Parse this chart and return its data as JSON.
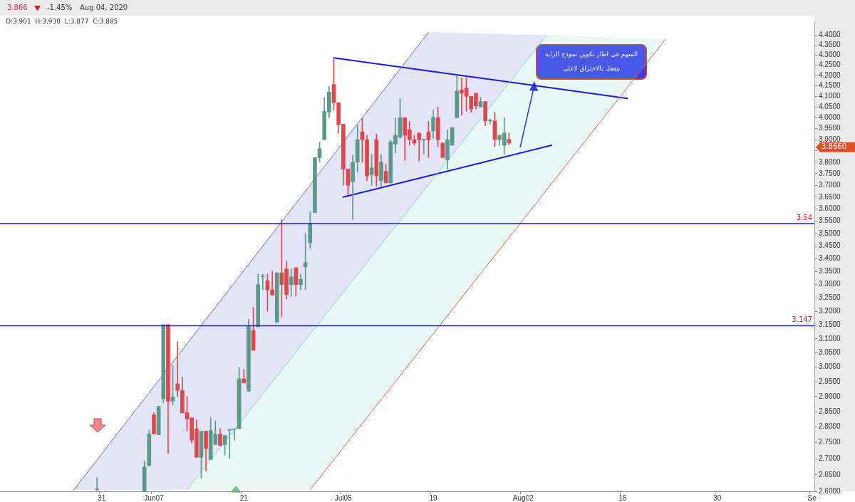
{
  "chart_data": {
    "type": "candlestick",
    "categories": [
      null,
      null,
      null,
      null,
      null,
      null,
      null,
      null,
      null,
      null,
      null,
      null,
      null,
      null,
      null,
      null,
      null,
      null,
      null,
      null,
      null,
      "31",
      null,
      null,
      null,
      null,
      null,
      null,
      null,
      null,
      null,
      null,
      "Jun07",
      null,
      null,
      null,
      null,
      null,
      null,
      null,
      null,
      null,
      null,
      null,
      null,
      null,
      null,
      null,
      null,
      null,
      null,
      "21",
      null,
      null,
      null,
      null,
      null,
      null,
      null,
      null,
      null,
      null,
      null,
      null,
      null,
      null,
      null,
      null,
      null,
      null,
      null,
      null,
      "Jul05",
      null,
      null,
      null,
      null,
      null,
      null,
      null,
      null,
      null,
      null,
      null,
      null,
      null,
      null,
      null,
      null,
      null,
      null,
      "19",
      null,
      null,
      null,
      null,
      null,
      null,
      null,
      null,
      null,
      null,
      null,
      null,
      null,
      null,
      null,
      null,
      null,
      null,
      "Aug02",
      null,
      null,
      null,
      null,
      null,
      null,
      null,
      null,
      null,
      null,
      null,
      null,
      null,
      null,
      null,
      null,
      null,
      null,
      null,
      null,
      "16",
      null,
      null,
      null,
      null,
      null,
      null,
      null,
      null,
      null,
      null,
      null,
      null,
      null,
      null,
      null,
      null,
      null,
      null,
      null,
      "30",
      null,
      null,
      null,
      null,
      null,
      null,
      null,
      null,
      null,
      null,
      null,
      null,
      null,
      null,
      null,
      null,
      null,
      null,
      null,
      "Se"
    ],
    "ohlc": [
      null,
      null,
      null,
      null,
      null,
      null,
      null,
      null,
      null,
      null,
      null,
      null,
      null,
      null,
      null,
      null,
      null,
      null,
      null,
      null,
      [
        2.605,
        2.642,
        2.6,
        2.605
      ],
      null,
      null,
      null,
      null,
      null,
      null,
      null,
      null,
      null,
      [
        2.6,
        2.693,
        2.6,
        2.674
      ],
      [
        2.678,
        2.79,
        2.678,
        2.778
      ],
      [
        2.84,
        2.847,
        2.778,
        2.778
      ],
      [
        2.775,
        2.868,
        2.775,
        2.868
      ],
      [
        2.893,
        3.151,
        2.88,
        3.151
      ],
      [
        3.151,
        3.151,
        2.716,
        2.885
      ],
      [
        2.885,
        3.006,
        2.871,
        2.898
      ],
      [
        2.943,
        3.09,
        2.9,
        2.921
      ],
      [
        2.921,
        2.966,
        2.846,
        2.846
      ],
      [
        2.847,
        2.9,
        2.788,
        2.826
      ],
      [
        2.83,
        2.83,
        2.748,
        2.758
      ],
      [
        2.794,
        2.823,
        2.704,
        2.704
      ],
      [
        2.704,
        2.787,
        2.64,
        2.787
      ],
      [
        2.787,
        2.787,
        2.662,
        2.731
      ],
      [
        2.697,
        2.83,
        2.697,
        2.789
      ],
      [
        2.744,
        2.82,
        2.744,
        2.777
      ],
      [
        2.777,
        2.794,
        2.741,
        2.741
      ],
      [
        2.744,
        2.774,
        2.711,
        2.773
      ],
      [
        2.79,
        2.79,
        2.7,
        2.79
      ],
      [
        2.792,
        2.792,
        2.758,
        2.792
      ],
      [
        2.795,
        3.0,
        2.795,
        2.96
      ],
      [
        2.96,
        2.993,
        2.946,
        2.946
      ],
      [
        2.918,
        3.17,
        2.918,
        3.147
      ],
      [
        3.13,
        3.215,
        3.059,
        3.059
      ],
      [
        3.143,
        3.34,
        3.143,
        3.3
      ],
      [
        3.33,
        3.34,
        3.28,
        3.33
      ],
      [
        3.315,
        3.34,
        3.2,
        3.28
      ],
      [
        3.28,
        3.352,
        3.26,
        3.26
      ],
      [
        3.16,
        3.345,
        3.16,
        3.345
      ],
      [
        3.345,
        3.556,
        3.18,
        3.3
      ],
      [
        3.36,
        3.39,
        3.245,
        3.262
      ],
      [
        3.3,
        3.36,
        3.255,
        3.33
      ],
      [
        3.365,
        3.365,
        3.255,
        3.3
      ],
      [
        3.3,
        3.34,
        3.28,
        3.32
      ],
      [
        3.368,
        3.5,
        3.28,
        3.385
      ],
      [
        3.463,
        3.59,
        3.44,
        3.54
      ],
      [
        3.585,
        3.82,
        3.585,
        3.82
      ],
      [
        3.82,
        3.89,
        3.8,
        3.86
      ],
      [
        3.9,
        4.095,
        3.9,
        4.03
      ],
      [
        4.025,
        4.148,
        4.0,
        4.12
      ],
      [
        4.156,
        4.286,
        4.035,
        4.07
      ],
      [
        4.07,
        4.07,
        3.93,
        3.968
      ],
      [
        3.97,
        3.97,
        3.7,
        3.77
      ],
      [
        3.77,
        3.77,
        3.66,
        3.7
      ],
      [
        3.716,
        3.83,
        3.557,
        3.8
      ],
      [
        3.8,
        3.966,
        3.757,
        3.9
      ],
      [
        3.935,
        3.997,
        3.8,
        3.9
      ],
      [
        3.9,
        3.92,
        3.72,
        3.74
      ],
      [
        3.746,
        3.835,
        3.7,
        3.775
      ],
      [
        3.9,
        3.925,
        3.695,
        3.74
      ],
      [
        3.72,
        3.835,
        3.695,
        3.8
      ],
      [
        3.76,
        3.79,
        3.71,
        3.71
      ],
      [
        3.71,
        3.9,
        3.71,
        3.89
      ],
      [
        3.88,
        4.0,
        3.84,
        3.92
      ],
      [
        3.91,
        4.09,
        3.91,
        4.0
      ],
      [
        4.0,
        4.0,
        3.806,
        3.92
      ],
      [
        3.945,
        3.983,
        3.875,
        3.9
      ],
      [
        3.9,
        3.92,
        3.875,
        3.885
      ],
      [
        3.93,
        3.93,
        3.806,
        3.9
      ],
      [
        3.9,
        3.9,
        3.835,
        3.9
      ],
      [
        3.935,
        3.983,
        3.82,
        3.9
      ],
      [
        3.94,
        4.035,
        3.905,
        4.0
      ],
      [
        4.0,
        4.05,
        3.87,
        3.9
      ],
      [
        3.885,
        3.885,
        3.82,
        3.82
      ],
      [
        3.81,
        3.945,
        3.77,
        3.9
      ],
      [
        3.875,
        3.955,
        3.875,
        3.955
      ],
      [
        4.0,
        4.196,
        4.0,
        4.125
      ],
      [
        4.13,
        4.186,
        4.01,
        4.115
      ],
      [
        4.14,
        4.19,
        4.03,
        4.1
      ],
      [
        4.1,
        4.1,
        4.025,
        4.04
      ],
      [
        4.115,
        4.115,
        4.04,
        4.055
      ],
      [
        4.05,
        4.095,
        4.05,
        4.075
      ],
      [
        4.075,
        4.075,
        3.963,
        3.985
      ],
      [
        3.985,
        3.995,
        3.97,
        3.985
      ],
      [
        3.985,
        4.025,
        3.87,
        3.9
      ],
      [
        3.9,
        3.92,
        3.875,
        3.92
      ],
      [
        3.875,
        4.0,
        3.835,
        3.93
      ],
      [
        3.901,
        3.93,
        3.877,
        3.885
      ],
      null,
      null,
      null,
      null,
      null,
      null,
      null,
      null,
      null,
      null,
      null,
      null,
      null,
      null,
      null,
      null,
      null,
      null,
      null,
      null,
      null,
      null,
      null,
      null,
      null,
      null,
      null,
      null,
      null,
      null,
      null,
      null,
      null,
      null,
      null,
      null,
      null,
      null,
      null,
      null,
      null,
      null,
      null,
      null,
      null,
      null,
      null,
      null,
      null,
      null,
      null,
      null,
      null,
      null,
      null,
      null,
      null,
      null,
      null,
      null,
      null,
      null,
      null,
      null
    ],
    "series": [
      {
        "type": "line",
        "color": "#6b6bd6",
        "upper": [
          null,
          null,
          null,
          null,
          null,
          null,
          null,
          null,
          null,
          null,
          null,
          null,
          null,
          null,
          null,
          2.603,
          null,
          null,
          null,
          null,
          null,
          null,
          null,
          null,
          null,
          null,
          null,
          null,
          null,
          null,
          null,
          null,
          null,
          null,
          null,
          null,
          null,
          null,
          null,
          3.082,
          null,
          null,
          null,
          null,
          null,
          null,
          null,
          null,
          null,
          null,
          null,
          null,
          null,
          null,
          null,
          null,
          null,
          null,
          null,
          null,
          null,
          null,
          null,
          null,
          null,
          null,
          null,
          null,
          null,
          null,
          null,
          null,
          null,
          null,
          null,
          null,
          null,
          null,
          null,
          null,
          null,
          null,
          null,
          null,
          null,
          null,
          null,
          null,
          null,
          null,
          4.414,
          null,
          null,
          null,
          null,
          null,
          null,
          null,
          null,
          null,
          null,
          null,
          null,
          null,
          null,
          null,
          null,
          null,
          null,
          null,
          null,
          null,
          null,
          null,
          null,
          4.4,
          null,
          null,
          null,
          null,
          null,
          null,
          null,
          null,
          null,
          null,
          null,
          null,
          null,
          null,
          null,
          null,
          null,
          null,
          null,
          null,
          null,
          null,
          null,
          null,
          null,
          null,
          null,
          null,
          null,
          null,
          null,
          null,
          null,
          null,
          null,
          null,
          null,
          null,
          null,
          null,
          null,
          null,
          null,
          null,
          null,
          null,
          null,
          null,
          null,
          null,
          null,
          null,
          null,
          null,
          null,
          null
        ],
        "lower": [
          null,
          null,
          null,
          null,
          null,
          null,
          null,
          null,
          null,
          null,
          null,
          null,
          null,
          null,
          null,
          2.603,
          null,
          null,
          null,
          null,
          null,
          null,
          null,
          null,
          null,
          null,
          null,
          null,
          null,
          null,
          null,
          null,
          null,
          null,
          null,
          null,
          null,
          null,
          null,
          2.605,
          null,
          null,
          null,
          null,
          null,
          null,
          null,
          null,
          null,
          null,
          null,
          null,
          null,
          null,
          null,
          null,
          null,
          null,
          null,
          null,
          null,
          null,
          null,
          null,
          null,
          null,
          null,
          null,
          null,
          null,
          null,
          null,
          null,
          null,
          null,
          null,
          null,
          null,
          null,
          null,
          null,
          null,
          null,
          null,
          null,
          null,
          null,
          null,
          null,
          null,
          3.7,
          null,
          null,
          null,
          null,
          null,
          null,
          null,
          null,
          null,
          null,
          null,
          null,
          null,
          null,
          null,
          null,
          null,
          null,
          null,
          null,
          null,
          null,
          null,
          null,
          4.4,
          null,
          null,
          null,
          null,
          null,
          null,
          null,
          null,
          null,
          null,
          null,
          null,
          null,
          null,
          null,
          null,
          null,
          null,
          null,
          null,
          null,
          null,
          null,
          null,
          null,
          null,
          null,
          null,
          null,
          null,
          null,
          null,
          null,
          null,
          null,
          null,
          null,
          null,
          null,
          null,
          null,
          null,
          null,
          null,
          null,
          null,
          null,
          null,
          null,
          null,
          null,
          null,
          null,
          null,
          null,
          null
        ],
        "values": [
          null,
          null,
          null,
          null,
          null,
          null,
          null,
          null,
          null,
          null,
          null,
          null,
          null,
          null,
          null,
          2.603,
          null,
          null,
          null,
          null,
          null,
          null,
          null,
          null,
          null,
          null,
          null,
          null,
          null,
          null,
          null,
          null,
          null,
          null,
          null,
          null,
          null,
          null,
          null,
          null,
          null,
          null,
          null,
          null,
          null,
          null,
          null,
          null,
          null,
          null,
          null,
          null,
          null,
          null,
          null,
          null,
          null,
          null,
          null,
          null,
          null,
          null,
          null,
          null,
          null,
          null,
          null,
          null,
          null,
          null,
          null,
          null,
          null,
          null,
          null,
          null,
          null,
          null,
          null,
          null,
          null,
          null,
          null,
          null,
          null,
          null,
          null,
          null,
          null,
          null,
          4.414,
          null,
          null,
          null,
          null,
          null,
          null,
          null,
          null,
          null,
          null,
          null,
          null,
          null,
          null,
          null,
          null,
          null,
          null,
          null,
          null,
          null,
          null,
          null,
          null,
          null,
          null,
          null,
          null,
          null,
          null,
          null,
          null,
          null,
          null,
          null,
          null,
          null,
          null,
          null,
          null,
          null,
          null,
          null,
          null,
          null,
          null,
          null,
          null,
          null,
          null,
          null,
          null,
          null,
          null,
          null,
          null,
          null,
          null,
          null,
          null,
          null,
          null,
          null,
          null,
          null,
          null,
          null,
          null,
          null,
          null,
          null,
          null,
          null,
          null,
          null,
          null,
          null,
          null,
          null,
          null,
          null
        ]
      },
      {
        "type": "line",
        "color": "#86d8c2",
        "upper": [
          null,
          null,
          null,
          null,
          null,
          null,
          null,
          null,
          null,
          null,
          null,
          null,
          null,
          null,
          null,
          null,
          null,
          null,
          null,
          null,
          null,
          null,
          null,
          null,
          null,
          null,
          null,
          null,
          null,
          null,
          null,
          null,
          null,
          null,
          null,
          null,
          null,
          null,
          null,
          2.605,
          null,
          null,
          null,
          null,
          null,
          null,
          null,
          null,
          null,
          null,
          null,
          null,
          null,
          null,
          null,
          null,
          null,
          null,
          null,
          null,
          null,
          null,
          null,
          null,
          null,
          3.116,
          null,
          null,
          null,
          null,
          null,
          null,
          null,
          null,
          null,
          null,
          null,
          null,
          null,
          null,
          null,
          null,
          null,
          null,
          null,
          null,
          null,
          null,
          null,
          null,
          null,
          null,
          null,
          null,
          null,
          null,
          null,
          null,
          null,
          null,
          null,
          null,
          null,
          null,
          null,
          null,
          null,
          null,
          null,
          null,
          null,
          null,
          null,
          null,
          null,
          4.4,
          null,
          null,
          null,
          null,
          null,
          null,
          null,
          null,
          null,
          null,
          null,
          null,
          null,
          null,
          null,
          null,
          null,
          null,
          null,
          null,
          null,
          null,
          null,
          null,
          4.377,
          null,
          null,
          null,
          null,
          null,
          null,
          null,
          null,
          null,
          null,
          null,
          null,
          null,
          null,
          null,
          null,
          null,
          null,
          null,
          null,
          null,
          null,
          null,
          null,
          null,
          null,
          null,
          null,
          null,
          null,
          null
        ],
        "lower": [
          null,
          null,
          null,
          null,
          null,
          null,
          null,
          null,
          null,
          null,
          null,
          null,
          null,
          null,
          null,
          null,
          null,
          null,
          null,
          null,
          null,
          null,
          null,
          null,
          null,
          null,
          null,
          null,
          null,
          null,
          null,
          null,
          null,
          null,
          null,
          null,
          null,
          null,
          null,
          2.605,
          null,
          null,
          null,
          null,
          null,
          null,
          null,
          null,
          null,
          null,
          null,
          null,
          null,
          null,
          null,
          null,
          null,
          null,
          null,
          null,
          null,
          null,
          null,
          null,
          null,
          2.605,
          null,
          null,
          null,
          null,
          null,
          null,
          null,
          null,
          null,
          null,
          null,
          null,
          null,
          null,
          null,
          null,
          null,
          null,
          null,
          null,
          null,
          null,
          null,
          null,
          null,
          null,
          null,
          null,
          null,
          null,
          null,
          null,
          null,
          null,
          null,
          null,
          null,
          null,
          null,
          null,
          null,
          null,
          null,
          null,
          null,
          null,
          null,
          null,
          null,
          3.682,
          null,
          null,
          null,
          null,
          null,
          null,
          null,
          null,
          null,
          null,
          null,
          null,
          null,
          null,
          null,
          null,
          null,
          null,
          null,
          null,
          null,
          null,
          null,
          null,
          4.377,
          null,
          null,
          null,
          null,
          null,
          null,
          null,
          null,
          null,
          null,
          null,
          null,
          null,
          null,
          null,
          null,
          null,
          null,
          null,
          null,
          null,
          null,
          null,
          null,
          null,
          null,
          null,
          null,
          null,
          null,
          null
        ],
        "values": [
          null,
          null,
          null,
          null,
          null,
          null,
          null,
          null,
          null,
          null,
          null,
          null,
          null,
          null,
          null,
          null,
          null,
          null,
          null,
          null,
          null,
          null,
          null,
          null,
          null,
          null,
          null,
          null,
          null,
          null,
          null,
          null,
          null,
          null,
          null,
          null,
          null,
          null,
          null,
          2.605,
          null,
          null,
          null,
          null,
          null,
          null,
          null,
          null,
          null,
          null,
          null,
          null,
          null,
          null,
          null,
          null,
          null,
          null,
          null,
          null,
          null,
          null,
          null,
          null,
          null,
          null,
          null,
          null,
          null,
          null,
          null,
          null,
          null,
          null,
          null,
          null,
          null,
          null,
          null,
          null,
          null,
          null,
          null,
          null,
          null,
          null,
          null,
          null,
          null,
          null,
          null,
          null,
          null,
          null,
          null,
          null,
          null,
          null,
          null,
          null,
          null,
          null,
          null,
          null,
          null,
          null,
          null,
          null,
          null,
          null,
          null,
          null,
          null,
          null,
          null,
          4.4,
          null,
          null,
          null,
          null,
          null,
          null,
          null,
          null,
          null,
          null,
          null,
          null,
          null,
          null,
          null,
          null,
          null,
          null,
          null,
          null,
          null,
          null,
          null,
          null,
          null,
          null,
          null,
          null,
          null,
          null,
          null,
          null,
          null,
          null,
          null,
          null,
          null,
          null,
          null,
          null,
          null,
          null,
          null,
          null,
          null,
          null,
          null,
          null,
          null,
          null,
          null,
          null,
          null,
          null,
          null,
          null
        ]
      },
      {
        "type": "line",
        "color": "#e8604f",
        "values": [
          null,
          null,
          null,
          null,
          null,
          null,
          null,
          null,
          null,
          null,
          null,
          null,
          null,
          null,
          null,
          null,
          null,
          null,
          null,
          null,
          null,
          null,
          null,
          null,
          null,
          null,
          null,
          null,
          null,
          null,
          null,
          null,
          null,
          null,
          null,
          null,
          null,
          null,
          null,
          null,
          null,
          null,
          null,
          null,
          null,
          null,
          null,
          null,
          null,
          null,
          null,
          null,
          null,
          null,
          null,
          null,
          null,
          null,
          null,
          null,
          null,
          null,
          null,
          null,
          null,
          2.605,
          null,
          null,
          null,
          null,
          null,
          null,
          null,
          null,
          null,
          null,
          null,
          null,
          null,
          null,
          null,
          null,
          null,
          null,
          null,
          null,
          null,
          null,
          null,
          null,
          null,
          null,
          null,
          null,
          null,
          null,
          null,
          null,
          null,
          null,
          null,
          null,
          null,
          null,
          null,
          null,
          null,
          null,
          null,
          null,
          null,
          null,
          null,
          null,
          null,
          null,
          null,
          null,
          null,
          null,
          null,
          null,
          null,
          null,
          null,
          null,
          null,
          null,
          null,
          null,
          null,
          null,
          null,
          null,
          null,
          null,
          null,
          null,
          null,
          null,
          4.377,
          null,
          null,
          null,
          null,
          null,
          null,
          null,
          null,
          null,
          null,
          null,
          null,
          null,
          null,
          null,
          null,
          null,
          null,
          null,
          null,
          null,
          null,
          null,
          null,
          null,
          null,
          null,
          null,
          null,
          null,
          null
        ]
      },
      {
        "type": "line",
        "color": "#1a1ad6",
        "values": [
          null,
          null,
          null,
          null,
          null,
          null,
          null,
          null,
          null,
          null,
          null,
          null,
          null,
          null,
          null,
          null,
          null,
          null,
          null,
          null,
          null,
          null,
          null,
          null,
          null,
          null,
          null,
          null,
          null,
          null,
          null,
          null,
          null,
          null,
          null,
          null,
          null,
          null,
          null,
          null,
          null,
          null,
          null,
          null,
          null,
          null,
          null,
          null,
          null,
          null,
          null,
          null,
          null,
          null,
          null,
          null,
          null,
          null,
          null,
          null,
          null,
          null,
          null,
          null,
          null,
          null,
          null,
          null,
          null,
          null,
          4.286,
          null,
          null,
          null,
          null,
          null,
          null,
          null,
          null,
          null,
          null,
          null,
          null,
          null,
          null,
          null,
          null,
          null,
          null,
          null,
          null,
          null,
          null,
          null,
          null,
          null,
          null,
          null,
          null,
          null,
          null,
          null,
          null,
          null,
          null,
          null,
          null,
          null,
          null,
          null,
          null,
          null,
          null,
          null,
          null,
          null,
          null,
          null,
          null,
          null,
          null,
          null,
          null,
          null,
          null,
          null,
          null,
          null,
          null,
          null,
          null,
          null,
          4.09,
          null,
          null,
          null,
          null,
          null,
          null,
          null,
          null,
          null,
          null,
          null,
          null,
          null,
          null,
          null,
          null,
          null,
          null,
          null,
          null,
          null,
          null,
          null,
          null,
          null,
          null,
          null,
          null,
          null,
          null,
          null,
          null,
          null,
          null,
          null,
          null,
          null,
          null,
          null
        ]
      },
      {
        "type": "line",
        "color": "#1a1ad6",
        "values": [
          null,
          null,
          null,
          null,
          null,
          null,
          null,
          null,
          null,
          null,
          null,
          null,
          null,
          null,
          null,
          null,
          null,
          null,
          null,
          null,
          null,
          null,
          null,
          null,
          null,
          null,
          null,
          null,
          null,
          null,
          null,
          null,
          null,
          null,
          null,
          null,
          null,
          null,
          null,
          null,
          null,
          null,
          null,
          null,
          null,
          null,
          null,
          null,
          null,
          null,
          null,
          null,
          null,
          null,
          null,
          null,
          null,
          null,
          null,
          null,
          null,
          null,
          null,
          null,
          null,
          null,
          null,
          null,
          null,
          null,
          null,
          null,
          3.65,
          null,
          null,
          null,
          null,
          null,
          null,
          null,
          null,
          null,
          null,
          null,
          null,
          null,
          null,
          null,
          null,
          null,
          null,
          null,
          null,
          null,
          null,
          null,
          null,
          null,
          null,
          null,
          null,
          null,
          null,
          null,
          null,
          null,
          null,
          null,
          null,
          null,
          null,
          null,
          null,
          null,
          null,
          null,
          3.875,
          null,
          null,
          null,
          null,
          null,
          null,
          null,
          null,
          null,
          null,
          null,
          null,
          null,
          null,
          null,
          null,
          null,
          null,
          null,
          null,
          null,
          null,
          null,
          null,
          null,
          null,
          null,
          null,
          null,
          null,
          null,
          null,
          null,
          null,
          null,
          null,
          null,
          null,
          null,
          null,
          null,
          null,
          null,
          null,
          null,
          null,
          null,
          null,
          null,
          null,
          null,
          null,
          null,
          null,
          null
        ]
      }
    ],
    "ylim": [
      2.6,
      4.47
    ],
    "log": true,
    "yticks": [
      {
        "value": 2.6,
        "label": "2.6000"
      },
      {
        "value": 2.65,
        "label": "2.6500"
      },
      {
        "value": 2.7,
        "label": "2.7000"
      },
      {
        "value": 2.75,
        "label": "2.7500"
      },
      {
        "value": 2.8,
        "label": "2.8000"
      },
      {
        "value": 2.85,
        "label": "2.8500"
      },
      {
        "value": 2.9,
        "label": "2.9000"
      },
      {
        "value": 2.95,
        "label": "2.9500"
      },
      {
        "value": 3.0,
        "label": "3.0000"
      },
      {
        "value": 3.05,
        "label": "3.0500"
      },
      {
        "value": 3.1,
        "label": "3.1000"
      },
      {
        "value": 3.15,
        "label": "3.1500"
      },
      {
        "value": 3.2,
        "label": "3.2000"
      },
      {
        "value": 3.25,
        "label": "3.2500"
      },
      {
        "value": 3.3,
        "label": "3.3000"
      },
      {
        "value": 3.35,
        "label": "3.3500"
      },
      {
        "value": 3.4,
        "label": "3.4000"
      },
      {
        "value": 3.45,
        "label": "3.4500"
      },
      {
        "value": 3.5,
        "label": "3.5000"
      },
      {
        "value": 3.55,
        "label": "3.5500"
      },
      {
        "value": 3.6,
        "label": "3.6000"
      },
      {
        "value": 3.65,
        "label": "3.6500"
      },
      {
        "value": 3.7,
        "label": "3.7000"
      },
      {
        "value": 3.75,
        "label": "3.7500"
      },
      {
        "value": 3.8,
        "label": "3.8000"
      },
      {
        "value": 3.85,
        "label": null
      },
      {
        "value": 3.9,
        "label": "3.9000"
      },
      {
        "value": 3.95,
        "label": "3.9500"
      },
      {
        "value": 4.0,
        "label": "4.0000"
      },
      {
        "value": 4.05,
        "label": "4.0500"
      },
      {
        "value": 4.1,
        "label": "4.1000"
      },
      {
        "value": 4.15,
        "label": "4.1500"
      },
      {
        "value": 4.2,
        "label": "4.2000"
      },
      {
        "value": 4.25,
        "label": "4.2500"
      },
      {
        "value": 4.3,
        "label": "4.3000"
      },
      {
        "value": 4.35,
        "label": "4.3500"
      },
      {
        "value": 4.4,
        "label": "4.4000"
      }
    ],
    "ref_lines": [
      {
        "axis": "y",
        "value": 3.54,
        "label": "3.54",
        "color": "#1a1ad6"
      },
      {
        "axis": "y",
        "value": 3.147,
        "label": "3.147",
        "color": "#1a1ad6"
      }
    ],
    "annotations": [
      "3.866",
      "-1.45%",
      "Aug 04, 2020",
      "O:3.901  H:3.930  L:3.877  C:3.885",
      "السهم في اطار تكوين نموذج الرايه\nيتفعل بالاختراق لاعلي",
      "3.8660"
    ]
  }
}
